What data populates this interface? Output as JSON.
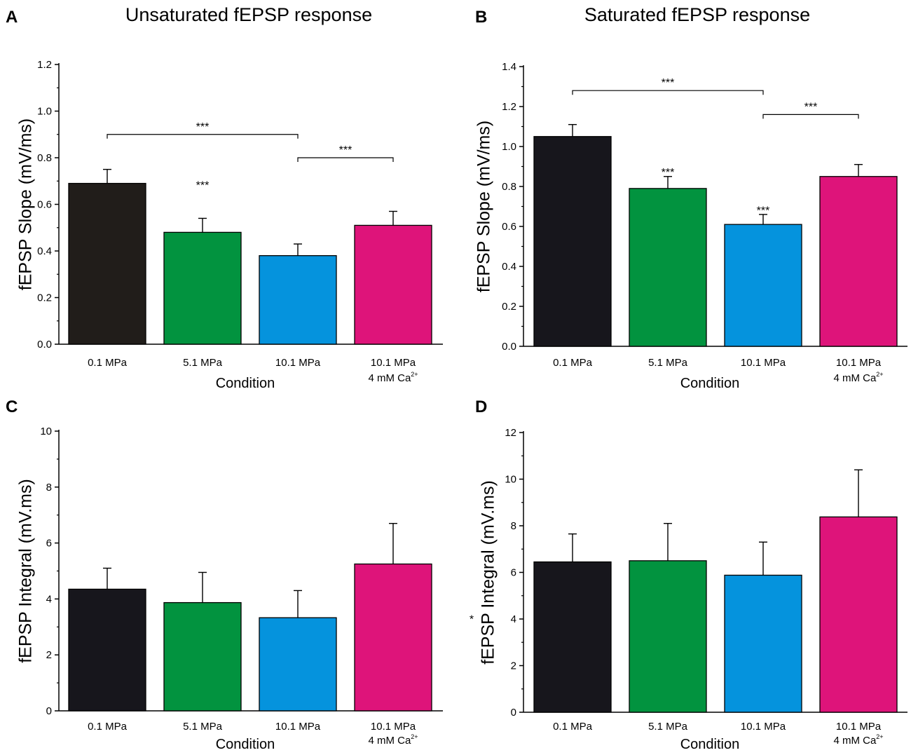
{
  "colors": {
    "bar_0": "#211d1a",
    "bar_0_alt": "#17161c",
    "bar_1": "#02933f",
    "bar_2": "#0593dd",
    "bar_3": "#de147a",
    "axis": "#000000"
  },
  "chart_data": [
    {
      "panel": "A",
      "type": "bar",
      "title": "Unsaturated fEPSP response",
      "xlabel": "Condition",
      "ylabel": "fEPSP Slope (mV/ms)",
      "categories": [
        "0.1 MPa",
        "5.1 MPa",
        "10.1 MPa",
        "10.1 MPa"
      ],
      "category_sublabels": [
        "",
        "",
        "",
        "4 mM Ca"
      ],
      "superscript": "2+",
      "values": [
        0.69,
        0.48,
        0.38,
        0.51
      ],
      "errors": [
        0.06,
        0.06,
        0.05,
        0.06
      ],
      "ylim": [
        0,
        1.2
      ],
      "yticks": [
        0.0,
        0.2,
        0.4,
        0.6,
        0.8,
        1.0,
        1.2
      ],
      "ytick_labels": [
        "0.0",
        "0.2",
        "0.4",
        "0.6",
        "0.8",
        "1.0",
        "1.2"
      ],
      "minor_ticks": true,
      "star_labels": [
        {
          "bar": 1,
          "y": 0.69,
          "text": "***"
        }
      ],
      "brackets": [
        {
          "from": 0,
          "to": 2,
          "y": 0.9,
          "text": "***"
        },
        {
          "from": 2,
          "to": 3,
          "y": 0.8,
          "text": "***"
        }
      ],
      "grid": false
    },
    {
      "panel": "B",
      "type": "bar",
      "title": "Saturated fEPSP response",
      "xlabel": "Condition",
      "ylabel": "fEPSP Slope (mV/ms)",
      "categories": [
        "0.1 MPa",
        "5.1 MPa",
        "10.1 MPa",
        "10.1 MPa"
      ],
      "category_sublabels": [
        "",
        "",
        "",
        "4 mM Ca"
      ],
      "superscript": "2+",
      "values": [
        1.05,
        0.79,
        0.61,
        0.85
      ],
      "errors": [
        0.06,
        0.06,
        0.05,
        0.06
      ],
      "ylim": [
        0,
        1.4
      ],
      "yticks": [
        0.0,
        0.2,
        0.4,
        0.6,
        0.8,
        1.0,
        1.2,
        1.4
      ],
      "ytick_labels": [
        "0.0",
        "0.2",
        "0.4",
        "0.6",
        "0.8",
        "1.0",
        "1.2",
        "1.4"
      ],
      "minor_ticks": true,
      "star_labels": [
        {
          "bar": 1,
          "y": 0.88,
          "text": "***"
        },
        {
          "bar": 2,
          "y": 0.69,
          "text": "***"
        }
      ],
      "brackets": [
        {
          "from": 0,
          "to": 2,
          "y": 1.28,
          "text": "***"
        },
        {
          "from": 2,
          "to": 3,
          "y": 1.16,
          "text": "***"
        }
      ],
      "grid": false
    },
    {
      "panel": "C",
      "type": "bar",
      "title": "",
      "xlabel": "Condition",
      "ylabel": "fEPSP Integral (mV.ms)",
      "categories": [
        "0.1 MPa",
        "5.1 MPa",
        "10.1 MPa",
        "10.1 MPa"
      ],
      "category_sublabels": [
        "",
        "",
        "",
        "4 mM Ca"
      ],
      "superscript": "2+",
      "values": [
        4.35,
        3.87,
        3.33,
        5.25
      ],
      "errors": [
        0.75,
        1.08,
        0.97,
        1.45
      ],
      "ylim": [
        0,
        10
      ],
      "yticks": [
        0,
        2,
        4,
        6,
        8,
        10
      ],
      "ytick_labels": [
        "0",
        "2",
        "4",
        "6",
        "8",
        "10"
      ],
      "minor_ticks": true,
      "star_labels": [],
      "brackets": [],
      "grid": false
    },
    {
      "panel": "D",
      "type": "bar",
      "title": "",
      "xlabel": "Condition",
      "ylabel": "fEPSP Integral (mV.ms)",
      "ylabel_mark": "*",
      "categories": [
        "0.1 MPa",
        "5.1 MPa",
        "10.1 MPa",
        "10.1 MPa"
      ],
      "category_sublabels": [
        "",
        "",
        "",
        "4 mM Ca"
      ],
      "superscript": "2+",
      "values": [
        6.45,
        6.5,
        5.88,
        8.38
      ],
      "errors": [
        1.2,
        1.6,
        1.42,
        2.02
      ],
      "ylim": [
        0,
        12
      ],
      "yticks": [
        0,
        2,
        4,
        6,
        8,
        10,
        12
      ],
      "ytick_labels": [
        "0",
        "2",
        "4",
        "6",
        "8",
        "10",
        "12"
      ],
      "minor_ticks": true,
      "star_labels": [],
      "brackets": [],
      "grid": false
    }
  ]
}
